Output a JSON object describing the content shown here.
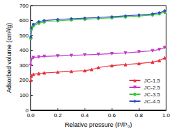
{
  "chart_data": {
    "type": "line",
    "x_label": "Relative pressure (P/P₀)",
    "y_label": "Adsorbed volume (cm³/g)",
    "xlim": [
      0,
      1
    ],
    "xticks": [
      {
        "value": 0,
        "label": "0.0"
      },
      0.2,
      0.4,
      0.6,
      0.8,
      {
        "value": 1,
        "label": "1.0"
      }
    ],
    "ylim": [
      0,
      700
    ],
    "yticks": [
      0,
      100,
      200,
      300,
      400,
      500,
      600,
      700
    ],
    "grid": false,
    "legend": "bottom-right",
    "series": [
      {
        "name": "JC-1.5",
        "color": "#e8313f",
        "marker": "triangle-up",
        "x": [
          0.001,
          0.005,
          0.02,
          0.06,
          0.1,
          0.2,
          0.3,
          0.4,
          0.45,
          0.5,
          0.6,
          0.7,
          0.8,
          0.9,
          0.95,
          0.99
        ],
        "values": [
          200,
          230,
          240,
          245,
          250,
          255,
          260,
          265,
          272,
          285,
          298,
          305,
          312,
          322,
          332,
          350
        ]
      },
      {
        "name": "JC-2.5",
        "color": "#c23fc9",
        "marker": "triangle-down",
        "x": [
          0.001,
          0.005,
          0.02,
          0.06,
          0.1,
          0.2,
          0.3,
          0.4,
          0.5,
          0.6,
          0.7,
          0.8,
          0.9,
          0.95,
          0.99
        ],
        "values": [
          300,
          340,
          352,
          356,
          360,
          363,
          366,
          370,
          374,
          378,
          383,
          390,
          398,
          406,
          420
        ]
      },
      {
        "name": "JC-3.5",
        "color": "#3cc83c",
        "marker": "circle",
        "x": [
          0.001,
          0.005,
          0.02,
          0.06,
          0.1,
          0.2,
          0.3,
          0.4,
          0.5,
          0.6,
          0.7,
          0.8,
          0.9,
          0.95,
          0.99
        ],
        "values": [
          480,
          540,
          565,
          582,
          590,
          598,
          604,
          608,
          613,
          618,
          624,
          630,
          637,
          645,
          655
        ]
      },
      {
        "name": "JC-4.5",
        "color": "#2e4fc2",
        "marker": "diamond",
        "x": [
          0.001,
          0.005,
          0.02,
          0.06,
          0.1,
          0.2,
          0.3,
          0.4,
          0.5,
          0.6,
          0.7,
          0.8,
          0.9,
          0.95,
          0.99
        ],
        "values": [
          490,
          550,
          575,
          592,
          600,
          607,
          612,
          616,
          620,
          625,
          631,
          637,
          644,
          652,
          665
        ]
      }
    ]
  }
}
